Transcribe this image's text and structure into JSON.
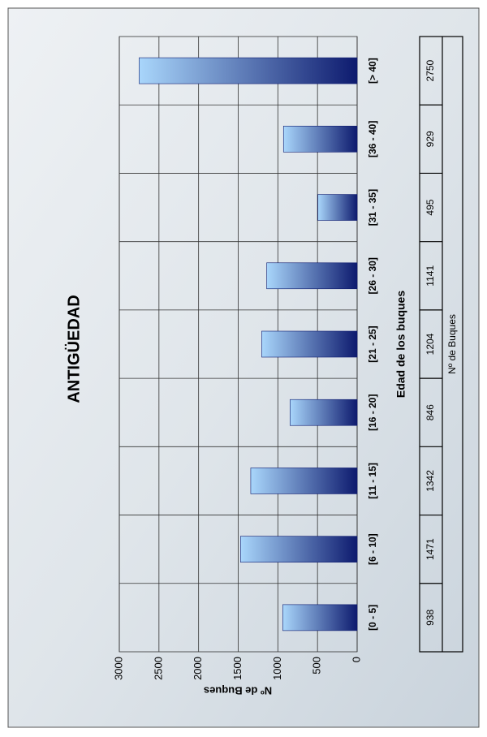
{
  "chart_data": {
    "type": "bar",
    "title": "ANTIGÜEDAD",
    "xlabel": "Edad de los buques",
    "ylabel": "Nº de Buques",
    "categories": [
      "[0 - 5]",
      "[6 - 10]",
      "[11 - 15]",
      "[16 - 20]",
      "[21 - 25]",
      "[26 - 30]",
      "[31 - 35]",
      "[36 - 40]",
      "[> 40]"
    ],
    "series": [
      {
        "name": "Nº de Buques",
        "color": "#0d1a6e",
        "values": [
          938,
          1471,
          1342,
          846,
          1204,
          1141,
          495,
          929,
          2750
        ]
      }
    ],
    "gradient_start": "#a9d6fb",
    "ylim": [
      0,
      3000
    ],
    "yticks": [
      0,
      500,
      1000,
      1500,
      2000,
      2500,
      3000
    ],
    "grid": true,
    "data_table": true
  }
}
